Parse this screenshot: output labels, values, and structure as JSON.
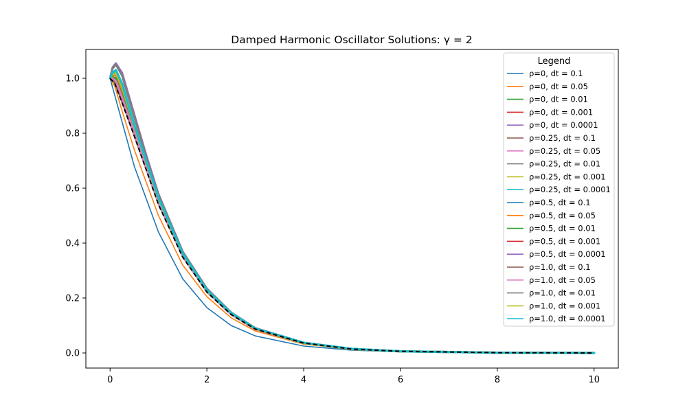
{
  "chart_data": {
    "type": "line",
    "title": "Damped Harmonic Oscillator Solutions: γ = 2",
    "xlabel": "",
    "ylabel": "",
    "xlim": [
      -0.5,
      10.5
    ],
    "ylim": [
      -0.055,
      1.105
    ],
    "x_ticks": [
      0,
      2,
      4,
      6,
      8,
      10
    ],
    "x_tick_labels": [
      "0",
      "2",
      "4",
      "6",
      "8",
      "10"
    ],
    "y_ticks": [
      0.0,
      0.2,
      0.4,
      0.6,
      0.8,
      1.0
    ],
    "y_tick_labels": [
      "0.0",
      "0.2",
      "0.4",
      "0.6",
      "0.8",
      "1.0"
    ],
    "grid": false,
    "legend": {
      "title": "Legend",
      "placement": "top-right",
      "entries": [
        "ρ=0, dt = 0.1",
        "ρ=0, dt = 0.05",
        "ρ=0, dt = 0.01",
        "ρ=0, dt = 0.001",
        "ρ=0, dt = 0.0001",
        "ρ=0.25, dt = 0.1",
        "ρ=0.25, dt = 0.05",
        "ρ=0.25, dt = 0.01",
        "ρ=0.25, dt = 0.001",
        "ρ=0.25, dt = 0.0001",
        "ρ=0.5, dt = 0.1",
        "ρ=0.5, dt = 0.05",
        "ρ=0.5, dt = 0.01",
        "ρ=0.5, dt = 0.001",
        "ρ=0.5, dt = 0.0001",
        "ρ=1.0, dt = 0.1",
        "ρ=1.0, dt = 0.05",
        "ρ=1.0, dt = 0.01",
        "ρ=1.0, dt = 0.001",
        "ρ=1.0, dt = 0.0001"
      ]
    },
    "colors": [
      "#1f77b4",
      "#ff7f0e",
      "#2ca02c",
      "#d62728",
      "#9467bd",
      "#8c564b",
      "#e377c2",
      "#7f7f7f",
      "#bcbd22",
      "#17becf"
    ],
    "series": [
      {
        "name": "ρ=0, dt = 0.1",
        "x": [
          0,
          0.25,
          0.5,
          1,
          1.5,
          2,
          2.5,
          3,
          4,
          5,
          6,
          7,
          8,
          10
        ],
        "y": [
          1.0,
          0.84,
          0.68,
          0.44,
          0.27,
          0.165,
          0.1,
          0.062,
          0.025,
          0.01,
          0.004,
          0.0015,
          0.0006,
          0.0
        ]
      },
      {
        "name": "ρ=0, dt = 0.05",
        "x": [
          0,
          0.1,
          0.25,
          0.5,
          1,
          1.5,
          2,
          2.5,
          3,
          4,
          5,
          6,
          8,
          10
        ],
        "y": [
          1.0,
          0.97,
          0.88,
          0.74,
          0.5,
          0.32,
          0.205,
          0.128,
          0.08,
          0.032,
          0.013,
          0.005,
          0.001,
          0.0
        ]
      },
      {
        "name": "ρ=0, dt = 0.01",
        "x": [
          0,
          0.1,
          0.25,
          0.5,
          1,
          1.5,
          2,
          2.5,
          3,
          4,
          5,
          6,
          8,
          10
        ],
        "y": [
          1.0,
          0.98,
          0.91,
          0.79,
          0.54,
          0.35,
          0.22,
          0.14,
          0.086,
          0.035,
          0.014,
          0.006,
          0.001,
          0.0
        ]
      },
      {
        "name": "ρ=0, dt = 0.001",
        "x": [
          0,
          0.1,
          0.25,
          0.5,
          1,
          1.5,
          2,
          2.5,
          3,
          4,
          5,
          6,
          8,
          10
        ],
        "y": [
          1.0,
          0.99,
          0.915,
          0.8,
          0.55,
          0.355,
          0.224,
          0.142,
          0.087,
          0.036,
          0.014,
          0.006,
          0.001,
          0.0
        ]
      },
      {
        "name": "ρ=0, dt = 0.0001",
        "x": [
          0,
          0.05,
          0.12,
          0.25,
          0.5,
          0.75,
          1,
          1.5,
          2,
          2.5,
          3,
          4,
          5,
          6,
          8,
          10
        ],
        "y": [
          1.0,
          1.04,
          1.055,
          1.02,
          0.87,
          0.72,
          0.58,
          0.37,
          0.235,
          0.148,
          0.091,
          0.038,
          0.015,
          0.006,
          0.001,
          0.0
        ]
      },
      {
        "name": "ρ=0.25, dt = 0.1",
        "x": [
          0,
          0.1,
          0.25,
          0.5,
          1,
          1.5,
          2,
          2.5,
          3,
          4,
          5,
          6,
          8,
          10
        ],
        "y": [
          1.0,
          0.99,
          0.92,
          0.79,
          0.545,
          0.35,
          0.222,
          0.14,
          0.087,
          0.035,
          0.014,
          0.006,
          0.001,
          0.0
        ]
      },
      {
        "name": "ρ=0.25, dt = 0.05",
        "x": [
          0,
          0.05,
          0.12,
          0.25,
          0.5,
          1,
          1.5,
          2,
          2.5,
          3,
          4,
          5,
          6,
          8,
          10
        ],
        "y": [
          1.0,
          1.02,
          1.02,
          0.96,
          0.82,
          0.56,
          0.36,
          0.228,
          0.143,
          0.088,
          0.036,
          0.014,
          0.006,
          0.001,
          0.0
        ]
      },
      {
        "name": "ρ=0.25, dt = 0.01",
        "x": [
          0,
          0.05,
          0.12,
          0.25,
          0.5,
          0.75,
          1,
          1.5,
          2,
          2.5,
          3,
          4,
          5,
          6,
          8,
          10
        ],
        "y": [
          1.0,
          1.035,
          1.05,
          1.01,
          0.86,
          0.71,
          0.575,
          0.368,
          0.233,
          0.147,
          0.09,
          0.037,
          0.015,
          0.006,
          0.001,
          0.0
        ]
      },
      {
        "name": "ρ=0.25, dt = 0.001",
        "x": [
          0,
          0.05,
          0.12,
          0.25,
          0.5,
          1,
          1.5,
          2,
          2.5,
          3,
          4,
          5,
          6,
          8,
          10
        ],
        "y": [
          1.0,
          1.02,
          1.03,
          0.98,
          0.83,
          0.565,
          0.362,
          0.23,
          0.145,
          0.089,
          0.036,
          0.014,
          0.006,
          0.001,
          0.0
        ]
      },
      {
        "name": "ρ=0.25, dt = 0.0001",
        "x": [
          0,
          0.05,
          0.12,
          0.25,
          0.5,
          1,
          1.5,
          2,
          2.5,
          3,
          4,
          5,
          6,
          8,
          10
        ],
        "y": [
          1.0,
          1.01,
          1.02,
          0.97,
          0.82,
          0.56,
          0.36,
          0.228,
          0.144,
          0.088,
          0.036,
          0.014,
          0.006,
          0.001,
          0.0
        ]
      },
      {
        "name": "ρ=0.5, dt = 0.1",
        "x": [
          0,
          0.1,
          0.25,
          0.5,
          1,
          1.5,
          2,
          2.5,
          3,
          4,
          5,
          6,
          8,
          10
        ],
        "y": [
          1.0,
          0.99,
          0.92,
          0.8,
          0.55,
          0.353,
          0.224,
          0.141,
          0.087,
          0.036,
          0.014,
          0.006,
          0.001,
          0.0
        ]
      },
      {
        "name": "ρ=0.5, dt = 0.05",
        "x": [
          0,
          0.05,
          0.12,
          0.25,
          0.5,
          1,
          1.5,
          2,
          2.5,
          3,
          4,
          5,
          6,
          8,
          10
        ],
        "y": [
          1.0,
          1.01,
          1.01,
          0.95,
          0.815,
          0.555,
          0.357,
          0.226,
          0.142,
          0.087,
          0.036,
          0.014,
          0.006,
          0.001,
          0.0
        ]
      },
      {
        "name": "ρ=0.5, dt = 0.01",
        "x": [
          0,
          0.05,
          0.12,
          0.25,
          0.5,
          1,
          1.5,
          2,
          2.5,
          3,
          4,
          5,
          6,
          8,
          10
        ],
        "y": [
          1.0,
          1.005,
          1.0,
          0.94,
          0.81,
          0.552,
          0.355,
          0.225,
          0.142,
          0.087,
          0.036,
          0.014,
          0.006,
          0.001,
          0.0
        ]
      },
      {
        "name": "ρ=0.5, dt = 0.001",
        "x": [
          0,
          0.05,
          0.12,
          0.25,
          0.5,
          1,
          1.5,
          2,
          2.5,
          3,
          4,
          5,
          6,
          8,
          10
        ],
        "y": [
          1.0,
          1.0,
          0.99,
          0.93,
          0.8,
          0.548,
          0.353,
          0.224,
          0.141,
          0.087,
          0.036,
          0.014,
          0.006,
          0.001,
          0.0
        ]
      },
      {
        "name": "ρ=0.5, dt = 0.0001",
        "x": [
          0,
          0.05,
          0.12,
          0.25,
          0.5,
          0.75,
          1,
          1.5,
          2,
          2.5,
          3,
          4,
          5,
          6,
          8,
          10
        ],
        "y": [
          1.0,
          1.04,
          1.055,
          1.02,
          0.87,
          0.72,
          0.58,
          0.37,
          0.235,
          0.148,
          0.091,
          0.038,
          0.015,
          0.006,
          0.001,
          0.0
        ]
      },
      {
        "name": "ρ=1.0, dt = 0.1",
        "x": [
          0,
          0.1,
          0.25,
          0.5,
          1,
          1.5,
          2,
          2.5,
          3,
          4,
          5,
          6,
          8,
          10
        ],
        "y": [
          1.0,
          0.99,
          0.92,
          0.8,
          0.55,
          0.353,
          0.224,
          0.141,
          0.087,
          0.036,
          0.014,
          0.006,
          0.001,
          0.0
        ]
      },
      {
        "name": "ρ=1.0, dt = 0.05",
        "x": [
          0,
          0.05,
          0.12,
          0.25,
          0.5,
          1,
          1.5,
          2,
          2.5,
          3,
          4,
          5,
          6,
          8,
          10
        ],
        "y": [
          1.0,
          1.0,
          0.99,
          0.93,
          0.8,
          0.548,
          0.353,
          0.224,
          0.141,
          0.087,
          0.036,
          0.014,
          0.006,
          0.001,
          0.0
        ]
      },
      {
        "name": "ρ=1.0, dt = 0.01",
        "x": [
          0,
          0.05,
          0.12,
          0.25,
          0.5,
          0.75,
          1,
          1.5,
          2,
          2.5,
          3,
          4,
          5,
          6,
          8,
          10
        ],
        "y": [
          1.0,
          1.035,
          1.05,
          1.01,
          0.86,
          0.71,
          0.575,
          0.368,
          0.233,
          0.147,
          0.09,
          0.037,
          0.015,
          0.006,
          0.001,
          0.0
        ]
      },
      {
        "name": "ρ=1.0, dt = 0.001",
        "x": [
          0,
          0.05,
          0.12,
          0.25,
          0.5,
          1,
          1.5,
          2,
          2.5,
          3,
          4,
          5,
          6,
          8,
          10
        ],
        "y": [
          1.0,
          1.015,
          1.02,
          0.97,
          0.825,
          0.562,
          0.36,
          0.228,
          0.144,
          0.088,
          0.036,
          0.014,
          0.006,
          0.001,
          0.0
        ]
      },
      {
        "name": "ρ=1.0, dt = 0.0001",
        "x": [
          0,
          0.05,
          0.12,
          0.25,
          0.5,
          1,
          1.5,
          2,
          2.5,
          3,
          4,
          5,
          6,
          8,
          10
        ],
        "y": [
          1.0,
          1.02,
          1.03,
          0.98,
          0.83,
          0.565,
          0.362,
          0.23,
          0.145,
          0.089,
          0.037,
          0.015,
          0.006,
          0.001,
          0.0
        ]
      }
    ],
    "reference": {
      "style": "dashed",
      "color": "#000000",
      "x": [
        0,
        0.1,
        0.25,
        0.5,
        1,
        1.5,
        2,
        2.5,
        3,
        4,
        5,
        6,
        8,
        10
      ],
      "y": [
        1.0,
        0.98,
        0.91,
        0.79,
        0.54,
        0.349,
        0.222,
        0.14,
        0.087,
        0.036,
        0.014,
        0.006,
        0.001,
        0.0
      ]
    }
  }
}
